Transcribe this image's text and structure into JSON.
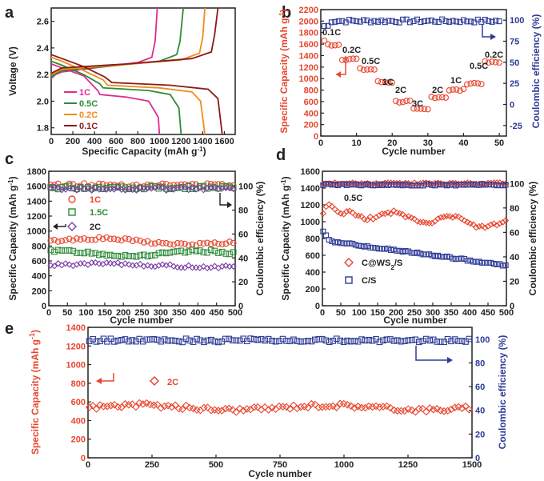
{
  "colors": {
    "red": "#e8462e",
    "blue": "#2e3a96",
    "green": "#2e8b3a",
    "purple": "#7b3fa8",
    "pink": "#e02a8e",
    "orange": "#f08c1a",
    "brown": "#8b1a1a",
    "black": "#222222"
  },
  "chart_data": [
    {
      "panel": "a",
      "type": "line",
      "xlabel": "Specific Capacity (mAh g⁻¹)",
      "ylabel": "Voltage (V)",
      "xlim": [
        0,
        1700
      ],
      "ylim": [
        1.75,
        2.7
      ],
      "xticks": [
        "0",
        "200",
        "400",
        "600",
        "800",
        "1000",
        "1200",
        "1400",
        "1600"
      ],
      "yticks": [
        "1.8",
        "2.0",
        "2.2",
        "2.4",
        "2.6"
      ],
      "legend": [
        "1C",
        "0.5C",
        "0.2C",
        "0.1C"
      ],
      "series": [
        {
          "name": "1C",
          "color": "#e02a8e",
          "discharge": [
            [
              0,
              2.28
            ],
            [
              100,
              2.25
            ],
            [
              300,
              2.19
            ],
            [
              430,
              2.08
            ],
            [
              450,
              2.05
            ],
            [
              700,
              2.03
            ],
            [
              900,
              2.0
            ],
            [
              990,
              1.88
            ],
            [
              1000,
              1.75
            ]
          ],
          "charge": [
            [
              0,
              2.17
            ],
            [
              40,
              2.2
            ],
            [
              100,
              2.22
            ],
            [
              400,
              2.25
            ],
            [
              800,
              2.29
            ],
            [
              930,
              2.33
            ],
            [
              960,
              2.45
            ],
            [
              980,
              2.7
            ]
          ]
        },
        {
          "name": "0.5C",
          "color": "#2e8b3a",
          "discharge": [
            [
              0,
              2.3
            ],
            [
              100,
              2.27
            ],
            [
              300,
              2.2
            ],
            [
              450,
              2.13
            ],
            [
              480,
              2.1
            ],
            [
              900,
              2.08
            ],
            [
              1100,
              2.05
            ],
            [
              1180,
              1.95
            ],
            [
              1200,
              1.75
            ]
          ],
          "charge": [
            [
              0,
              2.18
            ],
            [
              50,
              2.21
            ],
            [
              100,
              2.23
            ],
            [
              500,
              2.26
            ],
            [
              1000,
              2.3
            ],
            [
              1160,
              2.35
            ],
            [
              1190,
              2.45
            ],
            [
              1220,
              2.7
            ]
          ]
        },
        {
          "name": "0.2C",
          "color": "#f08c1a",
          "discharge": [
            [
              0,
              2.33
            ],
            [
              100,
              2.3
            ],
            [
              300,
              2.23
            ],
            [
              480,
              2.16
            ],
            [
              520,
              2.12
            ],
            [
              1000,
              2.1
            ],
            [
              1300,
              2.07
            ],
            [
              1380,
              2.0
            ],
            [
              1420,
              1.75
            ]
          ],
          "charge": [
            [
              0,
              2.2
            ],
            [
              50,
              2.22
            ],
            [
              100,
              2.24
            ],
            [
              600,
              2.27
            ],
            [
              1200,
              2.31
            ],
            [
              1370,
              2.36
            ],
            [
              1400,
              2.48
            ],
            [
              1420,
              2.7
            ]
          ]
        },
        {
          "name": "0.1C",
          "color": "#8b1a1a",
          "discharge": [
            [
              0,
              2.35
            ],
            [
              100,
              2.32
            ],
            [
              300,
              2.26
            ],
            [
              500,
              2.18
            ],
            [
              560,
              2.14
            ],
            [
              1100,
              2.12
            ],
            [
              1450,
              2.09
            ],
            [
              1540,
              2.02
            ],
            [
              1580,
              1.75
            ]
          ],
          "charge": [
            [
              0,
              2.21
            ],
            [
              50,
              2.23
            ],
            [
              100,
              2.25
            ],
            [
              700,
              2.28
            ],
            [
              1300,
              2.32
            ],
            [
              1480,
              2.37
            ],
            [
              1510,
              2.5
            ],
            [
              1540,
              2.7
            ]
          ]
        }
      ]
    },
    {
      "panel": "b",
      "type": "scatter",
      "xlabel": "Cycle number",
      "ylabel": "Specific Capacity (mAh g⁻¹)",
      "y2label": "Coulombic efficiency (%)",
      "xlim": [
        0,
        52
      ],
      "ylim": [
        0,
        2200
      ],
      "y2lim": [
        -37.5,
        112.5
      ],
      "xticks": [
        "0",
        "10",
        "20",
        "30",
        "40",
        "50"
      ],
      "yticks": [
        "0",
        "200",
        "400",
        "600",
        "800",
        "1000",
        "1200",
        "1400",
        "1600",
        "1800",
        "2000",
        "2200"
      ],
      "y2ticks": [
        "-25",
        "0",
        "25",
        "50",
        "75",
        "100"
      ],
      "rate_labels": [
        "0.1C",
        "0.2C",
        "0.5C",
        "1C",
        "2C",
        "3C",
        "2C",
        "1C",
        "0.5C",
        "0.2C"
      ],
      "rate_capacity": [
        1590,
        1340,
        1160,
        940,
        600,
        460,
        680,
        800,
        920,
        1280
      ],
      "coulombic_efficiency": 99
    },
    {
      "panel": "c",
      "type": "scatter",
      "xlabel": "Cycle number",
      "ylabel": "Specific Capacity (mAh g⁻¹)",
      "y2label": "Coulombic efficiency (%)",
      "xlim": [
        0,
        500
      ],
      "ylim": [
        0,
        1800
      ],
      "y2lim": [
        0,
        112.5
      ],
      "xticks": [
        "0",
        "50",
        "100",
        "150",
        "200",
        "250",
        "300",
        "350",
        "400",
        "450",
        "500"
      ],
      "yticks": [
        "0",
        "200",
        "400",
        "600",
        "800",
        "1000",
        "1200",
        "1400",
        "1600",
        "1800"
      ],
      "y2ticks": [
        "0",
        "20",
        "40",
        "60",
        "80",
        "100"
      ],
      "legend": [
        "1C",
        "1.5C",
        "2C"
      ],
      "series": [
        {
          "name": "1C",
          "capacity": 860,
          "ce": 101
        },
        {
          "name": "1.5C",
          "capacity": 700,
          "ce": 99
        },
        {
          "name": "2C",
          "capacity": 540,
          "ce": 98
        }
      ]
    },
    {
      "panel": "d",
      "type": "scatter",
      "xlabel": "Cycle number",
      "ylabel": "Specific Capacity (mAh g⁻¹)",
      "y2label": "Coulombic efficiency (%)",
      "xlim": [
        0,
        500
      ],
      "ylim": [
        0,
        1600
      ],
      "y2lim": [
        0,
        110
      ],
      "xticks": [
        "0",
        "50",
        "100",
        "150",
        "200",
        "250",
        "300",
        "350",
        "400",
        "450",
        "500"
      ],
      "yticks": [
        "0",
        "200",
        "400",
        "600",
        "800",
        "1000",
        "1200",
        "1400",
        "1600"
      ],
      "y2ticks": [
        "0",
        "20",
        "40",
        "60",
        "80",
        "100"
      ],
      "rate_text": "0.5C",
      "legend": [
        "C@WS₂/S",
        "C/S"
      ],
      "series": [
        {
          "name": "C@WS₂/S",
          "capacity_start": 1100,
          "capacity_end": 960,
          "ce": 100
        },
        {
          "name": "C/S",
          "capacity_start": 900,
          "capacity_end": 480,
          "ce": 99
        }
      ]
    },
    {
      "panel": "e",
      "type": "scatter",
      "xlabel": "Cycle number",
      "ylabel": "Specific Capacity (mAh g⁻¹)",
      "y2label": "Coulombic efficiency (%)",
      "xlim": [
        0,
        1500
      ],
      "ylim": [
        0,
        1400
      ],
      "y2lim": [
        0,
        110
      ],
      "xticks": [
        "0",
        "250",
        "500",
        "750",
        "1000",
        "1250",
        "1500"
      ],
      "yticks": [
        "0",
        "200",
        "400",
        "600",
        "800",
        "1000",
        "1200",
        "1400"
      ],
      "y2ticks": [
        "0",
        "20",
        "40",
        "60",
        "80",
        "100"
      ],
      "legend": [
        "2C"
      ],
      "capacity": 540,
      "ce": 99
    }
  ],
  "labels": {
    "a": {
      "panel": "a",
      "yaxis": "Voltage (V)",
      "xaxis": "Specific Capacity",
      "xunit": "(mAh g",
      "xsup": "-1",
      "xclose": ")",
      "l1": "1C",
      "l2": "0.5C",
      "l3": "0.2C",
      "l4": "0.1C"
    },
    "b": {
      "panel": "b",
      "xaxis": "Cycle number",
      "yaxis": "Specific Capacity (mAh g",
      "ysup": "-1",
      "yclose": ")",
      "y2axis": "Coulombic efficiency (%)"
    },
    "c": {
      "panel": "c",
      "xaxis": "Cycle number",
      "yaxis": "Specific Capacity (mAh g",
      "ysup": "-1",
      "yclose": ")",
      "y2axis": "Coulombic efficiency (%)",
      "l1": "1C",
      "l2": "1.5C",
      "l3": "2C"
    },
    "d": {
      "panel": "d",
      "xaxis": "Cycle number",
      "yaxis": "Specific Capacity (mAh g",
      "ysup": "-1",
      "yclose": ")",
      "y2axis": "Coulombic efficiency (%)",
      "rate": "0.5C",
      "l1a": "C@WS",
      "l1sub": "2",
      "l1b": "/S",
      "l2": "C/S"
    },
    "e": {
      "panel": "e",
      "xaxis": "Cycle number",
      "yaxis": "Specific Capacity (mAh g",
      "ysup": "-1",
      "yclose": ")",
      "y2axis": "Coulombic efficiency (%)",
      "l1": "2C"
    }
  }
}
